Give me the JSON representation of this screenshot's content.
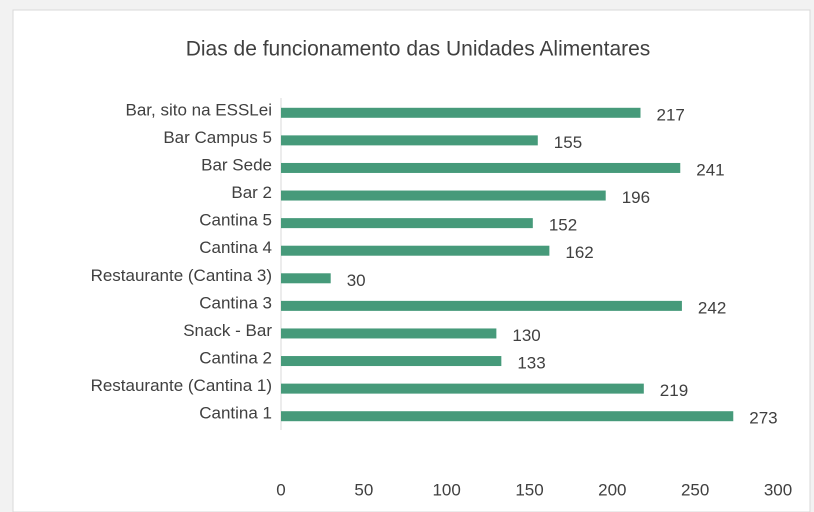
{
  "chart_data": {
    "type": "bar",
    "orientation": "horizontal",
    "title": "Dias de funcionamento das Unidades Alimentares",
    "categories": [
      "Bar, sito na ESSLei",
      "Bar Campus 5",
      "Bar Sede",
      "Bar 2",
      "Cantina 5",
      "Cantina 4",
      "Restaurante (Cantina 3)",
      "Cantina 3",
      "Snack - Bar",
      "Cantina 2",
      "Restaurante (Cantina 1)",
      "Cantina 1"
    ],
    "values": [
      217,
      155,
      241,
      196,
      152,
      162,
      30,
      242,
      130,
      133,
      219,
      273
    ],
    "color": "#469a7a",
    "xlim": [
      0,
      300
    ],
    "xticks": [
      0,
      50,
      100,
      150,
      200,
      250,
      300
    ],
    "grid": false
  }
}
